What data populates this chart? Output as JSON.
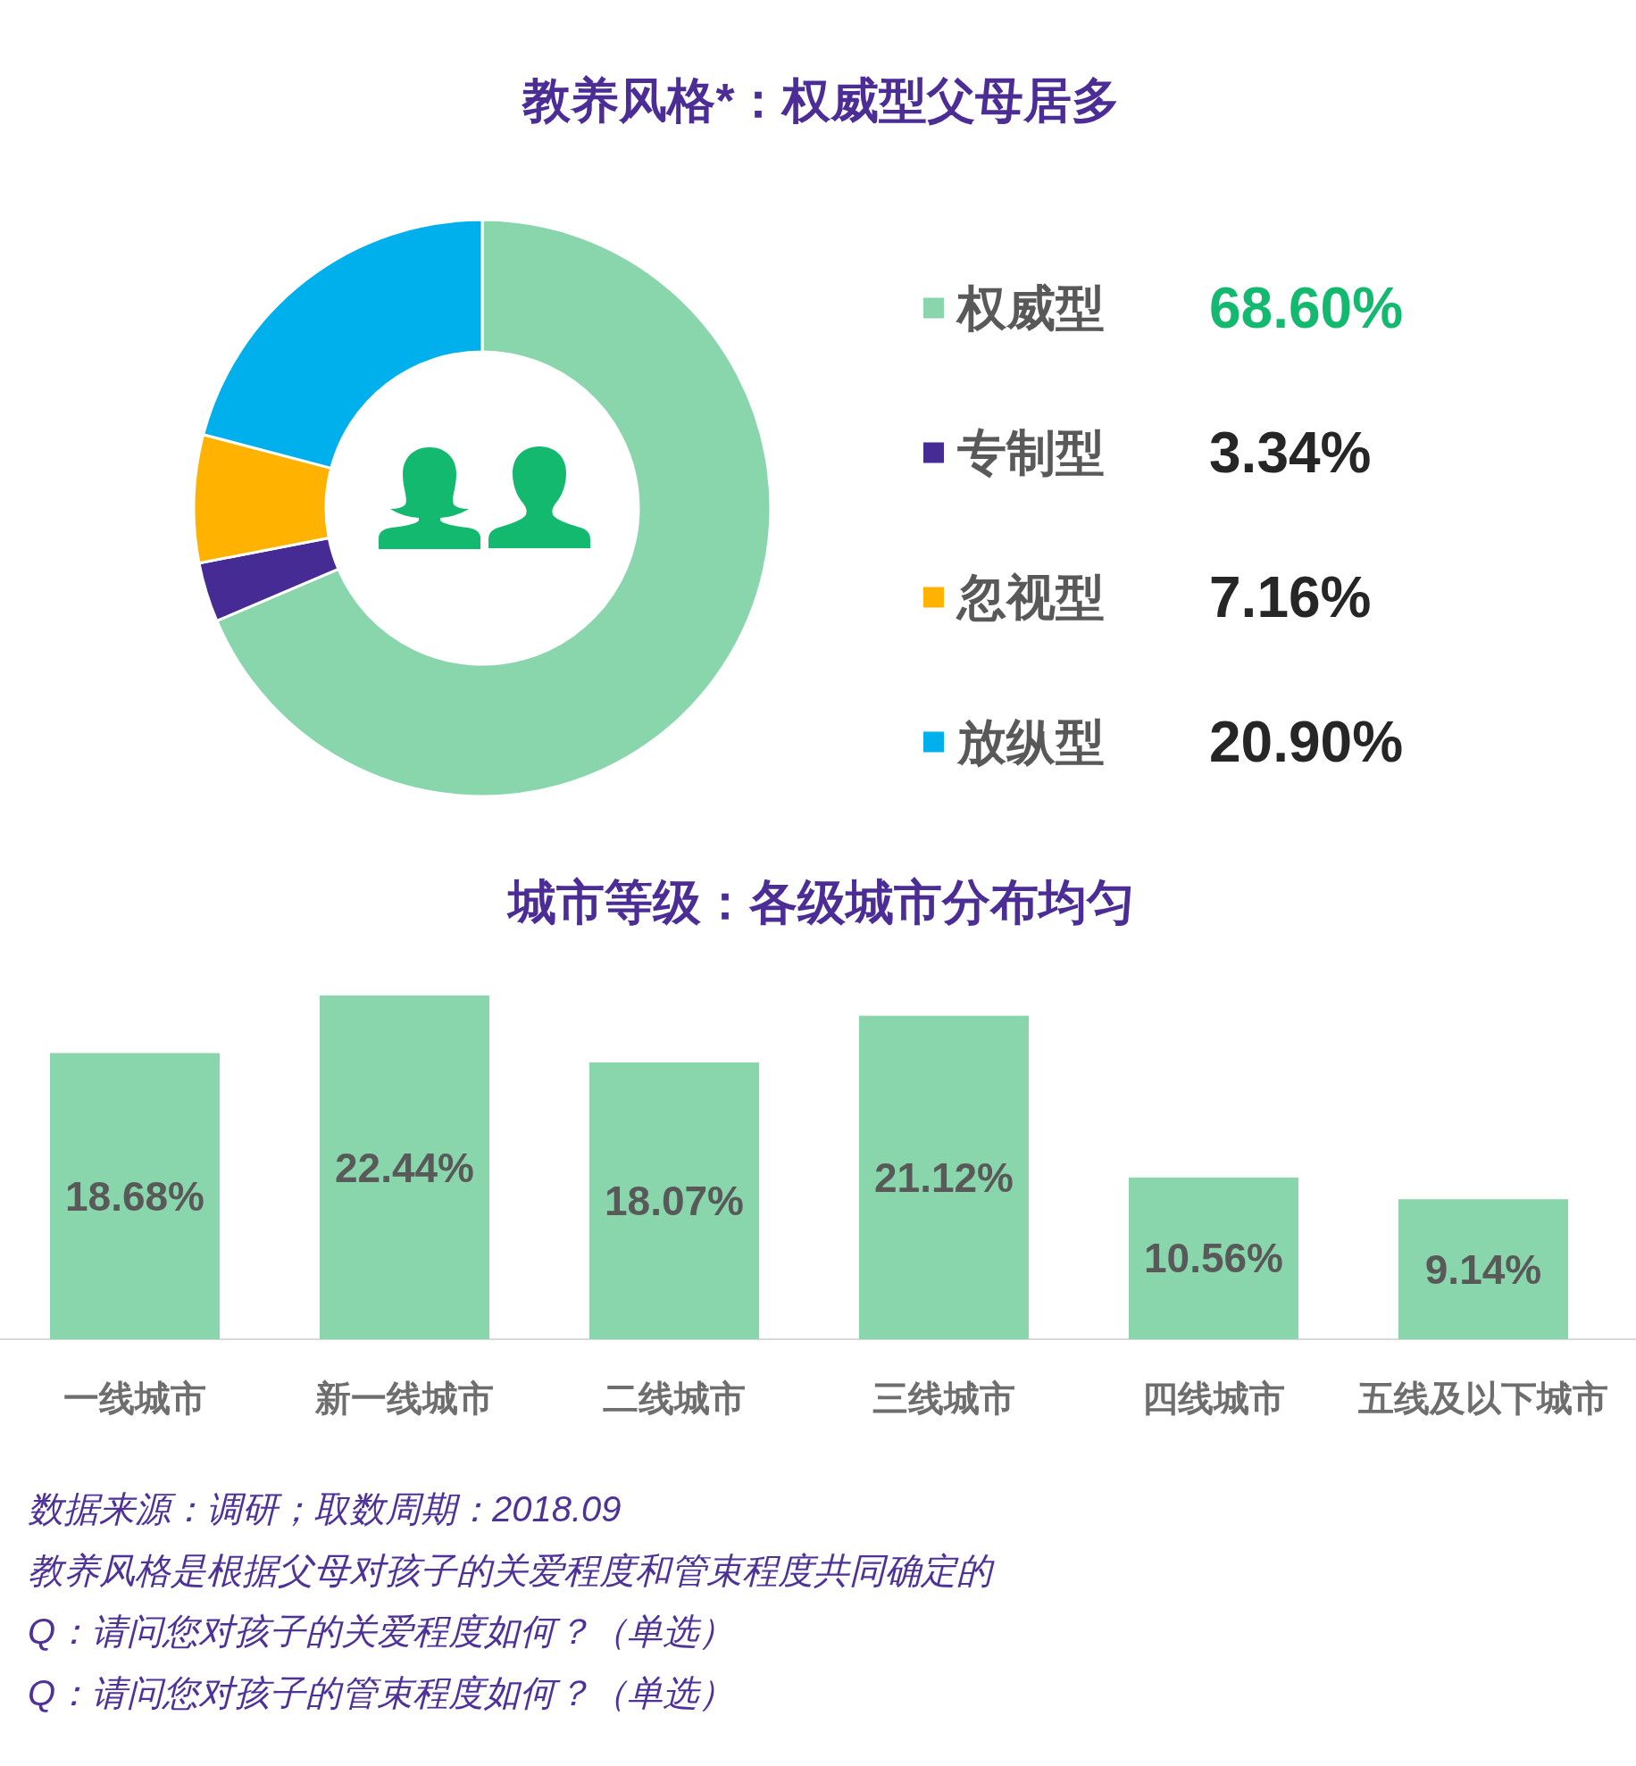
{
  "chart_data": [
    {
      "type": "donut",
      "title": "教养风格*：权威型父母居多",
      "categories": [
        "权威型",
        "专制型",
        "忽视型",
        "放纵型"
      ],
      "values": [
        68.6,
        3.34,
        7.16,
        20.9
      ],
      "value_labels": [
        "68.60%",
        "3.34%",
        "7.16%",
        "20.90%"
      ],
      "colors": [
        "#89d6ac",
        "#472b94",
        "#ffb200",
        "#00b0ed"
      ],
      "legend": "right"
    },
    {
      "type": "bar",
      "title": "城市等级：各级城市分布均匀",
      "categories": [
        "一线城市",
        "新一线城市",
        "二线城市",
        "三线城市",
        "四线城市",
        "五线及以下城市"
      ],
      "values": [
        18.68,
        22.44,
        18.07,
        21.12,
        10.56,
        9.14
      ],
      "value_labels": [
        "18.68%",
        "22.44%",
        "18.07%",
        "21.12%",
        "10.56%",
        "9.14%"
      ],
      "color": "#89d6ac",
      "annotations": [
        "数据来源：调研；取数周期：2018.09",
        "教养风格是根据父母对孩子的关爱程度和管束程度共同确定的",
        "Q：请问您对孩子的关爱程度如何？（单选）",
        "Q：请问您对孩子的管束程度如何？（单选）"
      ]
    }
  ]
}
